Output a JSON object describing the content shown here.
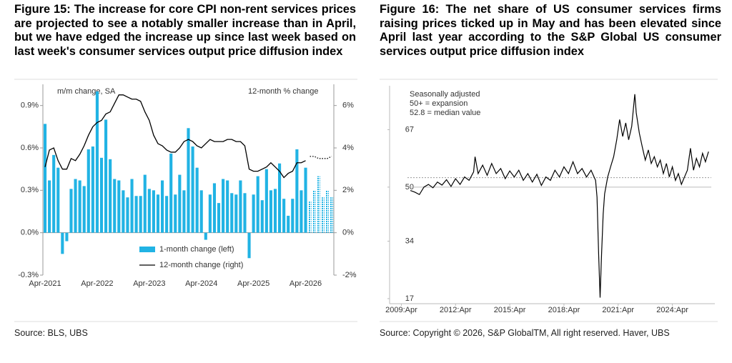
{
  "chart_data": [
    {
      "type": "bar_line",
      "title": "Figure 15: The increase for core CPI non-rent services prices are projected to see a notably smaller increase than in April, but we have edged the increase up since last week based on last week's consumer services output price diffusion index",
      "source": "Source: BLS, UBS",
      "ylabel": "m/m change, SA",
      "y2label": "12-month % change",
      "categories": [
        "Apr-2021",
        null,
        null,
        null,
        null,
        null,
        null,
        null,
        null,
        null,
        null,
        null,
        "Apr-2022",
        null,
        null,
        null,
        null,
        null,
        null,
        null,
        null,
        null,
        null,
        null,
        "Apr-2023",
        null,
        null,
        null,
        null,
        null,
        null,
        null,
        null,
        null,
        null,
        null,
        "Apr-2024",
        null,
        null,
        null,
        null,
        null,
        null,
        null,
        null,
        null,
        null,
        null,
        "Apr-2025",
        null,
        null,
        null,
        null,
        null,
        null,
        null,
        null,
        null,
        null,
        null,
        "Apr-2026",
        null,
        null,
        null,
        null,
        null,
        null
      ],
      "series": [
        {
          "name": "1-month change (left)",
          "type": "bar",
          "color": "#21b3e4",
          "values": [
            0.77,
            0.37,
            0.55,
            0.46,
            -0.15,
            -0.06,
            0.31,
            0.38,
            0.37,
            0.33,
            0.59,
            0.61,
            1.0,
            0.53,
            0.8,
            0.52,
            0.38,
            0.37,
            0.3,
            0.25,
            0.38,
            0.26,
            0.26,
            0.41,
            0.31,
            0.3,
            0.27,
            0.37,
            0.26,
            0.56,
            0.27,
            0.41,
            0.3,
            0.74,
            0.61,
            0.46,
            0.3,
            -0.05,
            0.27,
            0.35,
            0.21,
            0.38,
            0.37,
            0.28,
            0.27,
            0.37,
            0.28,
            -0.18,
            0.27,
            0.4,
            0.23,
            0.45,
            0.3,
            0.31,
            0.49,
            0.24,
            0.12,
            0.24,
            0.59,
            0.3,
            0.46,
            0.22,
            0.3,
            0.4,
            0.25,
            0.3,
            0.25
          ]
        },
        {
          "name": "12-month change (right)",
          "type": "line",
          "color": "#000000",
          "axis": "y2",
          "values": [
            3.1,
            3.9,
            4.0,
            3.4,
            3.0,
            3.0,
            3.5,
            3.4,
            3.7,
            4.1,
            4.6,
            5.0,
            5.2,
            5.3,
            5.6,
            5.7,
            6.1,
            6.5,
            6.5,
            6.4,
            6.3,
            6.3,
            6.2,
            5.7,
            5.3,
            4.6,
            4.2,
            4.1,
            3.9,
            3.8,
            3.8,
            4.0,
            4.3,
            4.4,
            4.3,
            4.1,
            4.0,
            4.2,
            4.4,
            4.3,
            4.3,
            4.3,
            4.4,
            4.4,
            4.3,
            4.3,
            4.1,
            3.0,
            2.9,
            2.9,
            3.0,
            3.1,
            3.3,
            3.1,
            2.9,
            2.6,
            2.8,
            2.9,
            3.3,
            3.3,
            3.4,
            3.6,
            3.6,
            3.5,
            3.5,
            3.5,
            3.6
          ]
        }
      ],
      "forecast_start": 61,
      "ylim": [
        -0.3,
        1.05
      ],
      "yticks": [
        {
          "value": -0.3,
          "label": "-0.3%"
        },
        {
          "value": 0,
          "label": "0.0%"
        },
        {
          "value": 0.3,
          "label": "0.3%"
        },
        {
          "value": 0.6,
          "label": "0.6%"
        },
        {
          "value": 0.9,
          "label": "0.9%"
        }
      ],
      "y2lim": [
        -2,
        7
      ],
      "y2ticks": [
        {
          "value": -2,
          "label": "-2%"
        },
        {
          "value": 0,
          "label": "0%"
        },
        {
          "value": 2,
          "label": "2%"
        },
        {
          "value": 4,
          "label": "4%"
        },
        {
          "value": 6,
          "label": "6%"
        }
      ],
      "legend": "bottom"
    },
    {
      "type": "line",
      "title": "Figure 16: The net share of US consumer services firms raising prices ticked up in May and has been elevated since April last year according to the S&P Global US consumer services output price diffusion index",
      "source": "Source: Copyright © 2026, S&P GlobalTM, All right reserved. Haver, UBS",
      "annotations": [
        "Seasonally adjusted",
        "50+ = expansion",
        "52.8 = median value"
      ],
      "x": [
        2009.75,
        2010.0,
        2010.25,
        2010.5,
        2010.75,
        2011.0,
        2011.25,
        2011.5,
        2011.75,
        2012.0,
        2012.25,
        2012.5,
        2012.75,
        2013.0,
        2013.25,
        2013.33,
        2013.5,
        2013.75,
        2014.0,
        2014.25,
        2014.5,
        2014.75,
        2015.0,
        2015.25,
        2015.5,
        2015.75,
        2016.0,
        2016.25,
        2016.5,
        2016.75,
        2017.0,
        2017.25,
        2017.5,
        2017.75,
        2018.0,
        2018.25,
        2018.5,
        2018.75,
        2019.0,
        2019.25,
        2019.5,
        2019.75,
        2020.0,
        2020.08,
        2020.17,
        2020.25,
        2020.33,
        2020.42,
        2020.5,
        2020.67,
        2020.83,
        2021.0,
        2021.17,
        2021.33,
        2021.5,
        2021.67,
        2021.83,
        2022.0,
        2022.17,
        2022.25,
        2022.42,
        2022.58,
        2022.75,
        2022.92,
        2023.08,
        2023.25,
        2023.42,
        2023.58,
        2023.75,
        2023.92,
        2024.08,
        2024.25,
        2024.42,
        2024.58,
        2024.75,
        2024.92,
        2025.08,
        2025.25,
        2025.42,
        2025.58,
        2025.75,
        2025.92,
        2026.08,
        2026.25
      ],
      "series": [
        {
          "color": "#000000",
          "values": [
            49,
            48.5,
            47.8,
            50,
            50.8,
            49.8,
            51.5,
            50.6,
            52.2,
            50.2,
            52.5,
            50.8,
            53,
            52,
            54.5,
            59,
            54,
            56.5,
            53.5,
            57,
            54,
            55.5,
            52.5,
            54.8,
            53,
            55,
            52,
            54,
            51.5,
            53.8,
            50.5,
            53,
            52,
            55,
            53,
            56,
            54,
            57.5,
            54,
            55.5,
            53,
            55,
            52,
            47,
            30,
            17.3,
            30,
            42,
            48,
            53,
            56,
            59,
            64,
            70,
            65,
            69,
            64,
            68,
            77.5,
            72,
            66,
            62,
            58,
            61,
            57,
            59,
            56,
            58,
            54,
            57,
            53,
            56,
            52,
            54,
            50.8,
            53,
            55,
            61.5,
            55,
            58.5,
            56,
            60,
            57.5,
            60.5
          ]
        }
      ],
      "reference_lines": [
        {
          "value": 50,
          "color": "#bbbbbb",
          "style": "solid"
        },
        {
          "value": 52.8,
          "color": "#999999",
          "style": "dotted"
        }
      ],
      "xlim": [
        2008.6,
        2026.6
      ],
      "xticks": [
        {
          "value": 2009.25,
          "label": "2009:Apr"
        },
        {
          "value": 2012.25,
          "label": "2012:Apr"
        },
        {
          "value": 2015.25,
          "label": "2015:Apr"
        },
        {
          "value": 2018.25,
          "label": "2018:Apr"
        },
        {
          "value": 2021.25,
          "label": "2021:Apr"
        },
        {
          "value": 2024.25,
          "label": "2024:Apr"
        }
      ],
      "ylim": [
        15.5,
        80
      ],
      "yticks": [
        17,
        34,
        50,
        67
      ]
    }
  ]
}
